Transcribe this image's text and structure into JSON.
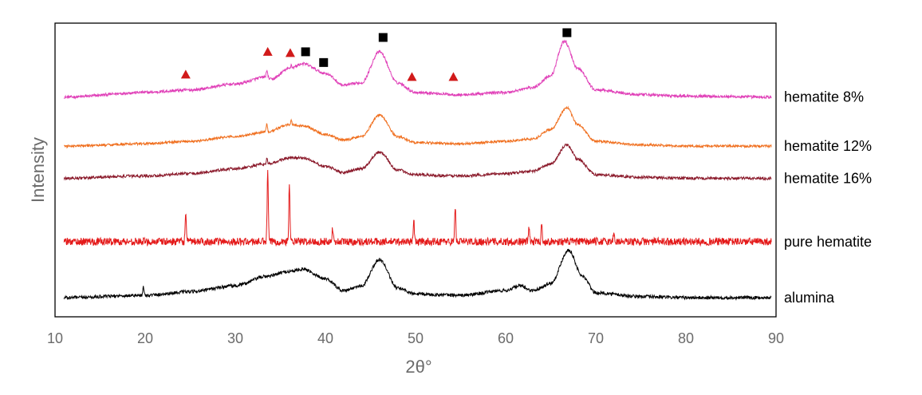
{
  "chart_data": {
    "type": "line",
    "title": "",
    "xlabel": "2θ°",
    "ylabel": "Intensity",
    "xlim": [
      10,
      90
    ],
    "x_ticks": [
      10,
      20,
      30,
      40,
      50,
      60,
      70,
      80,
      90
    ],
    "y_ticks": [],
    "grid": false,
    "legend": "labels at right end of each trace",
    "series": [
      {
        "name": "hematite 8%",
        "color": "#e040b8",
        "baseline": 0.86,
        "noise": 0.006,
        "points": [
          [
            11,
            0
          ],
          [
            20,
            0.02
          ],
          [
            25,
            0.03
          ],
          [
            30,
            0.055
          ],
          [
            33.5,
            0.085
          ],
          [
            34,
            0.075
          ],
          [
            36,
            0.12
          ],
          [
            37.5,
            0.14
          ],
          [
            40,
            0.1
          ],
          [
            42,
            0.05
          ],
          [
            44,
            0.06
          ],
          [
            46,
            0.19
          ],
          [
            48,
            0.06
          ],
          [
            50,
            0.02
          ],
          [
            55,
            0.01
          ],
          [
            60,
            0.02
          ],
          [
            63,
            0.04
          ],
          [
            65,
            0.09
          ],
          [
            66.5,
            0.235
          ],
          [
            68,
            0.12
          ],
          [
            70,
            0.03
          ],
          [
            75,
            0.01
          ],
          [
            80,
            0.005
          ],
          [
            89.5,
            0
          ]
        ],
        "spikes": [
          [
            33.5,
            0.03
          ],
          [
            36.2,
            0.015
          ]
        ]
      },
      {
        "name": "hematite 12%",
        "color": "#f07020",
        "baseline": 0.655,
        "noise": 0.005,
        "points": [
          [
            11,
            0
          ],
          [
            20,
            0.01
          ],
          [
            25,
            0.02
          ],
          [
            30,
            0.04
          ],
          [
            33.5,
            0.06
          ],
          [
            36,
            0.09
          ],
          [
            37.5,
            0.085
          ],
          [
            40,
            0.05
          ],
          [
            42,
            0.025
          ],
          [
            44,
            0.04
          ],
          [
            46,
            0.13
          ],
          [
            48,
            0.04
          ],
          [
            50,
            0.015
          ],
          [
            55,
            0.01
          ],
          [
            60,
            0.02
          ],
          [
            63,
            0.03
          ],
          [
            65,
            0.07
          ],
          [
            66.8,
            0.16
          ],
          [
            68,
            0.09
          ],
          [
            70,
            0.02
          ],
          [
            75,
            0.005
          ],
          [
            80,
            0
          ],
          [
            89.5,
            0
          ]
        ],
        "spikes": [
          [
            33.5,
            0.035
          ],
          [
            36.2,
            0.02
          ]
        ]
      },
      {
        "name": "hematite 16%",
        "color": "#8b1a2b",
        "baseline": 0.52,
        "noise": 0.006,
        "points": [
          [
            11,
            0
          ],
          [
            20,
            0.01
          ],
          [
            25,
            0.02
          ],
          [
            30,
            0.04
          ],
          [
            33.5,
            0.06
          ],
          [
            36,
            0.085
          ],
          [
            37.5,
            0.085
          ],
          [
            40,
            0.05
          ],
          [
            42,
            0.025
          ],
          [
            44,
            0.04
          ],
          [
            46,
            0.11
          ],
          [
            48,
            0.035
          ],
          [
            50,
            0.015
          ],
          [
            55,
            0.01
          ],
          [
            60,
            0.02
          ],
          [
            63,
            0.03
          ],
          [
            65,
            0.06
          ],
          [
            66.8,
            0.14
          ],
          [
            68,
            0.08
          ],
          [
            70,
            0.015
          ],
          [
            75,
            0.005
          ],
          [
            80,
            0
          ],
          [
            89.5,
            0
          ]
        ],
        "spikes": [
          [
            33.5,
            0.025
          ]
        ]
      },
      {
        "name": "pure hematite",
        "color": "#e41a1a",
        "baseline": 0.255,
        "noise": 0.016,
        "points": [
          [
            11,
            0
          ],
          [
            89.5,
            0
          ]
        ],
        "spikes": [
          [
            24.5,
            0.12
          ],
          [
            33.6,
            0.3
          ],
          [
            36,
            0.23
          ],
          [
            40.8,
            0.06
          ],
          [
            49.8,
            0.09
          ],
          [
            54.4,
            0.15
          ],
          [
            62.6,
            0.06
          ],
          [
            64,
            0.07
          ],
          [
            72,
            0.04
          ]
        ]
      },
      {
        "name": "alumina",
        "color": "#000000",
        "baseline": 0.02,
        "noise": 0.007,
        "points": [
          [
            11,
            0
          ],
          [
            20,
            0.01
          ],
          [
            25,
            0.025
          ],
          [
            30,
            0.05
          ],
          [
            33.5,
            0.09
          ],
          [
            36,
            0.11
          ],
          [
            37.5,
            0.12
          ],
          [
            40,
            0.08
          ],
          [
            42,
            0.03
          ],
          [
            44,
            0.05
          ],
          [
            46,
            0.16
          ],
          [
            48,
            0.04
          ],
          [
            50,
            0.015
          ],
          [
            55,
            0.01
          ],
          [
            60,
            0.03
          ],
          [
            61.5,
            0.05
          ],
          [
            63,
            0.03
          ],
          [
            65,
            0.06
          ],
          [
            67,
            0.2
          ],
          [
            68.5,
            0.09
          ],
          [
            70,
            0.02
          ],
          [
            75,
            0.005
          ],
          [
            80,
            0
          ],
          [
            89.5,
            0
          ]
        ],
        "spikes": [
          [
            19.8,
            0.035
          ]
        ]
      }
    ],
    "markers": [
      {
        "shape": "triangle",
        "color": "#d11a1a",
        "x": 24.5,
        "y": 0.955
      },
      {
        "shape": "triangle",
        "color": "#d11a1a",
        "x": 33.6,
        "y": 1.05
      },
      {
        "shape": "triangle",
        "color": "#d11a1a",
        "x": 36.1,
        "y": 1.045
      },
      {
        "shape": "triangle",
        "color": "#d11a1a",
        "x": 49.6,
        "y": 0.945
      },
      {
        "shape": "triangle",
        "color": "#d11a1a",
        "x": 54.2,
        "y": 0.945
      },
      {
        "shape": "square",
        "color": "#000000",
        "x": 37.8,
        "y": 1.05
      },
      {
        "shape": "square",
        "color": "#000000",
        "x": 39.8,
        "y": 1.005
      },
      {
        "shape": "square",
        "color": "#000000",
        "x": 46.4,
        "y": 1.11
      },
      {
        "shape": "square",
        "color": "#000000",
        "x": 66.8,
        "y": 1.13
      }
    ]
  }
}
